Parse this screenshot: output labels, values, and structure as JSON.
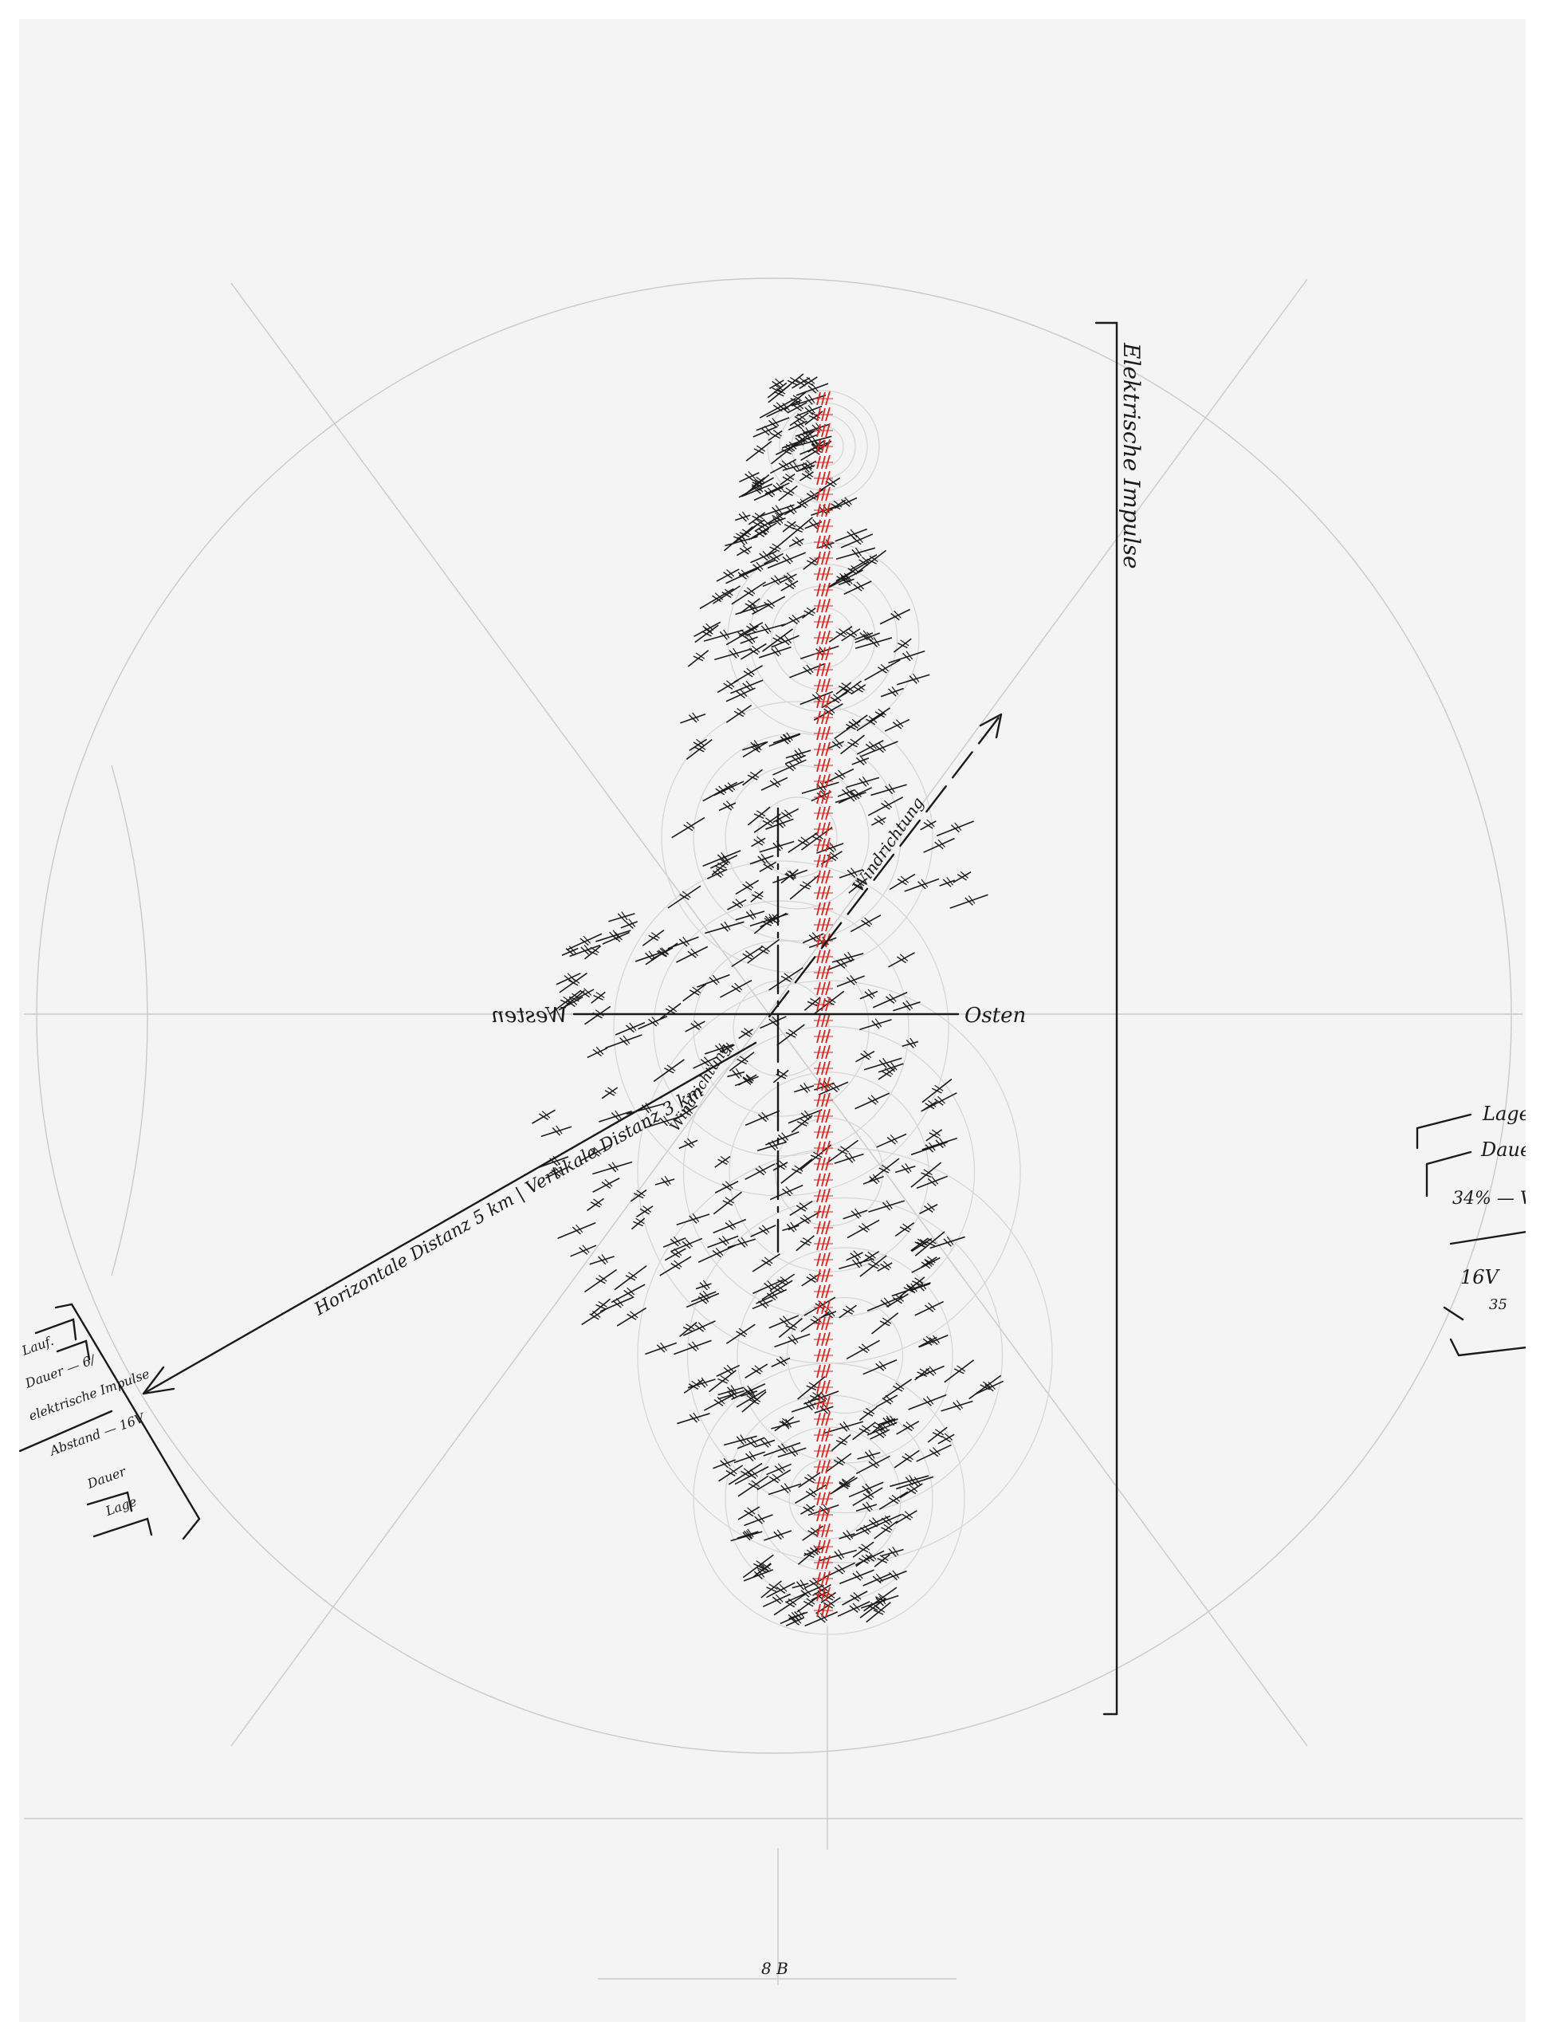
{
  "drawing": {
    "axis_labels": {
      "west": "Westen",
      "east": "Osten"
    },
    "right_bracket_label": "Elektrische Impulse",
    "wind_label_upper": "Windrichtung",
    "wind_label_lower": "Windrichtung",
    "diagonal_label": "Horizontale Distanz 5 km | Vertikale Distanz 3 km",
    "right_note": {
      "lines": [
        "Lage",
        "Dauer",
        "34% — V.",
        "16V",
        "35"
      ]
    },
    "left_note": {
      "lines": [
        "Lauf.",
        "Dauer — 6/",
        "elektrische Impulse",
        "Abstand — 16V",
        "Dauer",
        "Lage"
      ]
    },
    "page_mark": "8 B",
    "colors": {
      "paper": "#f4f4f4",
      "ink": "#1a1a1a",
      "pencil": "#c9c9c9",
      "red_marks": "#e0201a"
    }
  }
}
